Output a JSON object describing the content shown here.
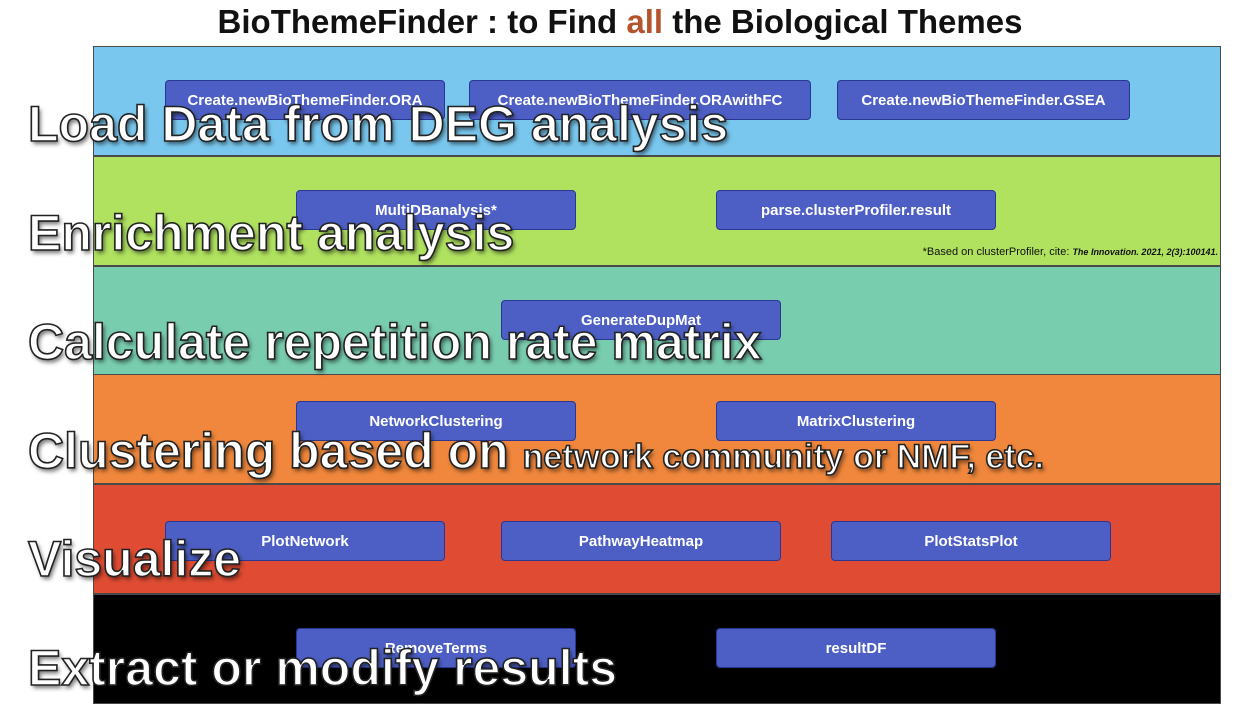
{
  "title": {
    "before": "BioThemeFinder : to Find ",
    "highlight": "all",
    "after": " the Biological Themes",
    "highlight_color": "#b5532c"
  },
  "bands": [
    {
      "stage_label": "Load Data from DEG analysis",
      "stage_label_small": "",
      "color": "#79c7ee",
      "functions": [
        "Create.newBioThemeFinder.ORA",
        "Create.newBioThemeFinder.ORAwithFC",
        "Create.newBioThemeFinder.GSEA"
      ]
    },
    {
      "stage_label": "Enrichment analysis",
      "stage_label_small": "",
      "color": "#b0e260",
      "functions": [
        "MultiDBanalysis*",
        "parse.clusterProfiler.result"
      ]
    },
    {
      "stage_label": "Calculate repetition rate matrix",
      "stage_label_small": "",
      "color": "#79cdaf",
      "functions": [
        "GenerateDupMat"
      ]
    },
    {
      "stage_label": "Clustering based on ",
      "stage_label_small": "network community or NMF, etc.",
      "color": "#f0873c",
      "functions": [
        "NetworkClustering",
        "MatrixClustering"
      ]
    },
    {
      "stage_label": "Visualize",
      "stage_label_small": "",
      "color": "#df4c33",
      "functions": [
        "PlotNetwork",
        "PathwayHeatmap",
        "PlotStatsPlot"
      ]
    },
    {
      "stage_label": "Extract or modify results",
      "stage_label_small": "",
      "color": "#000000",
      "functions": [
        "RemoveTerms",
        "resultDF"
      ]
    }
  ],
  "footnote": {
    "text": "*Based on clusterProfiler, cite: ",
    "citation": "The Innovation. 2021, 2(3):100141."
  },
  "function_button_color": "#4d5fc4"
}
